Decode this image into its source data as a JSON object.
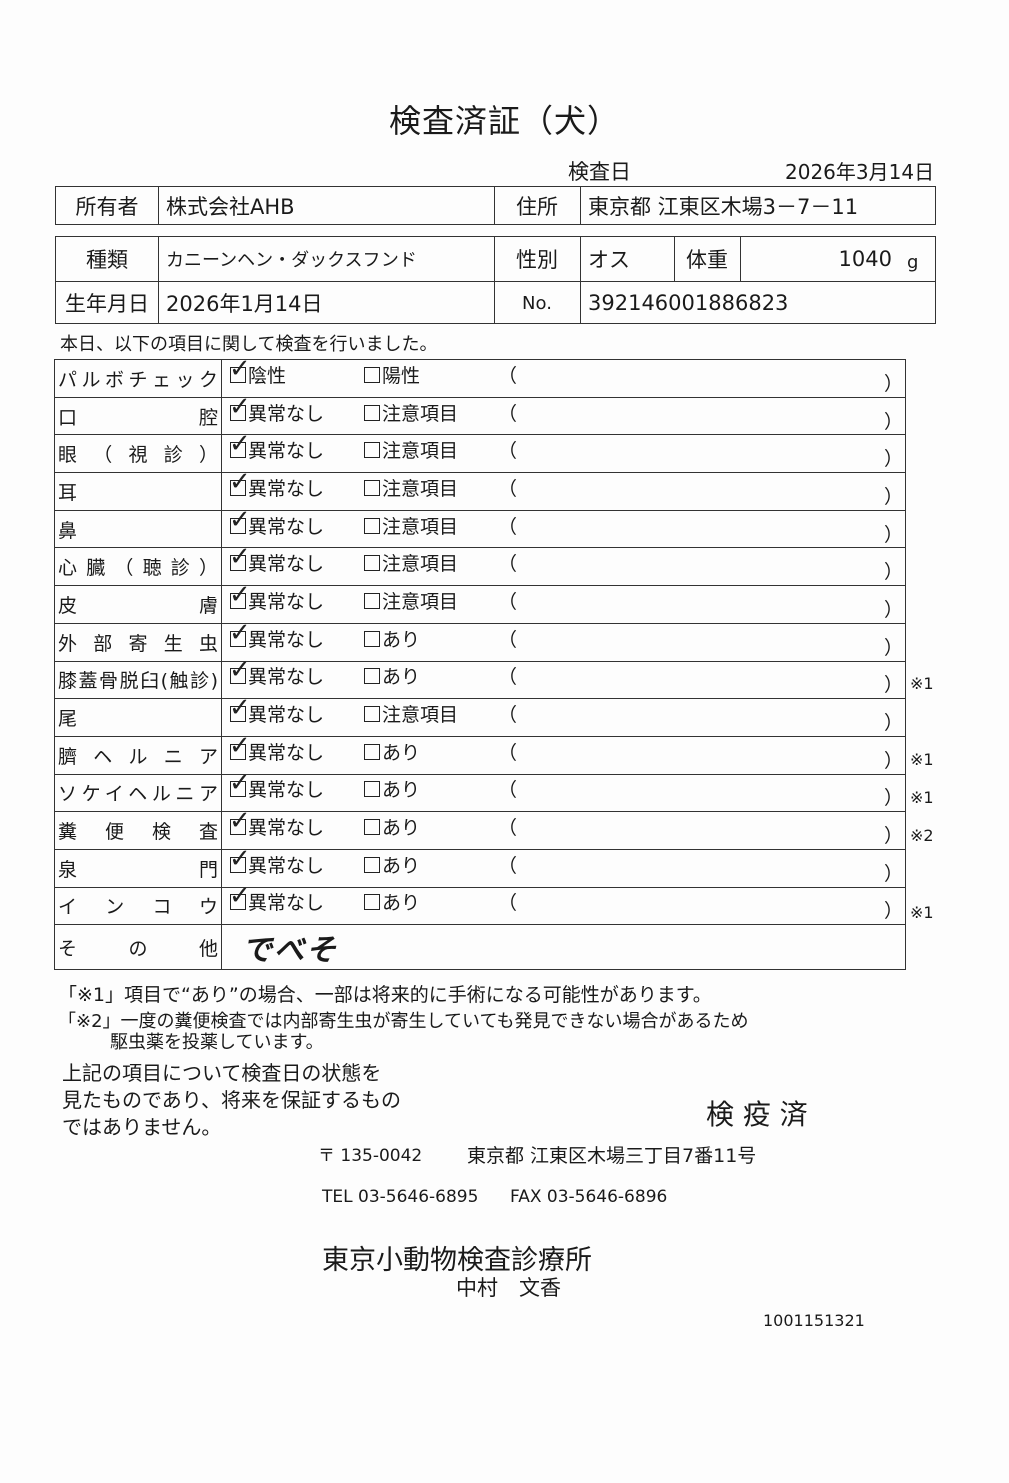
{
  "title": "検査済証（犬）",
  "exam_date_label": "検査日",
  "exam_date": "2026年3月14日",
  "owner_label": "所有者",
  "owner": "株式会社AHB",
  "address_label": "住所",
  "address": "東京都 江東区木場3－7－11",
  "breed_label": "種類",
  "breed": "カニーンヘン・ダックスフンド",
  "sex_label": "性別",
  "sex": "オス",
  "weight_label": "体重",
  "weight": "1040",
  "weight_unit": "g",
  "dob_label": "生年月日",
  "dob": "2026年1月14日",
  "no_label": "No.",
  "no": "392146001886823",
  "intro": "本日、以下の項目に関して検査を行いました。",
  "items": [
    {
      "label": "パルボチェック",
      "opt1": "陰性",
      "opt2": "陽性",
      "checked": "opt1",
      "note": ""
    },
    {
      "label": "口腔",
      "opt1": "異常なし",
      "opt2": "注意項目",
      "checked": "opt1",
      "note": ""
    },
    {
      "label": "眼（視診）",
      "opt1": "異常なし",
      "opt2": "注意項目",
      "checked": "opt1",
      "note": ""
    },
    {
      "label": "耳",
      "opt1": "異常なし",
      "opt2": "注意項目",
      "checked": "opt1",
      "note": ""
    },
    {
      "label": "鼻",
      "opt1": "異常なし",
      "opt2": "注意項目",
      "checked": "opt1",
      "note": ""
    },
    {
      "label": "心臓（聴診）",
      "opt1": "異常なし",
      "opt2": "注意項目",
      "checked": "opt1",
      "note": ""
    },
    {
      "label": "皮膚",
      "opt1": "異常なし",
      "opt2": "注意項目",
      "checked": "opt1",
      "note": ""
    },
    {
      "label": "外部寄生虫",
      "opt1": "異常なし",
      "opt2": "あり",
      "checked": "opt1",
      "note": ""
    },
    {
      "label": "膝蓋骨脱臼(触診)",
      "opt1": "異常なし",
      "opt2": "あり",
      "checked": "opt1",
      "note": "※1"
    },
    {
      "label": "尾",
      "opt1": "異常なし",
      "opt2": "注意項目",
      "checked": "opt1",
      "note": ""
    },
    {
      "label": "臍ヘルニア",
      "opt1": "異常なし",
      "opt2": "あり",
      "checked": "opt1",
      "note": "※1"
    },
    {
      "label": "ソケイヘルニア",
      "opt1": "異常なし",
      "opt2": "あり",
      "checked": "opt1",
      "note": "※1"
    },
    {
      "label": "糞便検査",
      "opt1": "異常なし",
      "opt2": "あり",
      "checked": "opt1",
      "note": "※2"
    },
    {
      "label": "泉門",
      "opt1": "異常なし",
      "opt2": "あり",
      "checked": "opt1",
      "note": ""
    },
    {
      "label": "インコウ",
      "opt1": "異常なし",
      "opt2": "あり",
      "checked": "opt1",
      "note": "※1"
    }
  ],
  "other_label": "その他",
  "other_value": "でべそ",
  "paren_open": "（",
  "paren_close": "）",
  "footnote1": "「※1」項目で“あり”の場合、一部は将来的に手術になる可能性があります。",
  "footnote2a": "「※2」一度の糞便検査では内部寄生虫が寄生していても発見できない場合があるため",
  "footnote2b": "駆虫薬を投薬しています。",
  "disclaimer": [
    "上記の項目について検査日の状態を",
    "見たものであり、将来を保証するもの",
    "ではありません。"
  ],
  "stamp": "検 疫 済",
  "postal": "〒 135-0042",
  "clinic_address": "東京都 江東区木場三丁目7番11号",
  "tel": "TEL 03-5646-6895",
  "fax": "FAX 03-5646-6896",
  "clinic_name": "東京小動物検査診療所",
  "vet_name": "中村　文香",
  "doc_number": "1001151321"
}
